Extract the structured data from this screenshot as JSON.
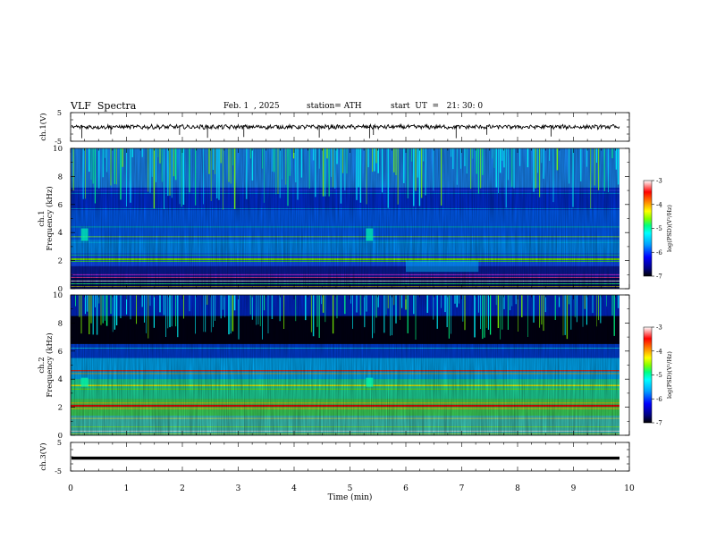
{
  "header": {
    "title": "VLF  Spectra",
    "date": "Feb. 1  , 2025",
    "station": "station= ATH",
    "start": "start  UT  =   21: 30: 0"
  },
  "chart_data": [
    {
      "type": "line",
      "panel": "ch1-waveform",
      "ylabel": "ch.1(V)",
      "y_ticks": [
        "5",
        "-5"
      ],
      "ylim": [
        -5,
        5
      ],
      "xlim": [
        0,
        10
      ],
      "trace_color": "#000000",
      "description_of_signal": "noisy waveform near 0 V with occasional downward spikes"
    },
    {
      "type": "heatmap",
      "panel": "ch1-spectrogram",
      "ylabel": "ch.1\nFrequency  (kHz)",
      "ylabel_line1": "ch.1",
      "ylabel_line2": "Frequency  (kHz)",
      "y_ticks": [
        "0",
        "2",
        "4",
        "6",
        "8",
        "10"
      ],
      "ylim": [
        0,
        10
      ],
      "xlim": [
        0,
        10
      ],
      "colorbar": {
        "label": "log(PSD)(V²/Hz)",
        "ticks": [
          "-3",
          "-4",
          "-5",
          "-6",
          "-7"
        ],
        "range": [
          -7,
          -3
        ]
      }
    },
    {
      "type": "heatmap",
      "panel": "ch2-spectrogram",
      "ylabel_line1": "ch.2",
      "ylabel_line2": "Frequency  (kHz)",
      "y_ticks": [
        "0",
        "2",
        "4",
        "6",
        "8",
        "10"
      ],
      "ylim": [
        0,
        10
      ],
      "xlim": [
        0,
        10
      ],
      "colorbar": {
        "label": "log(PSD)(V²/Hz)",
        "ticks": [
          "-3",
          "-4",
          "-5",
          "-6",
          "-7"
        ],
        "range": [
          -7,
          -3
        ]
      }
    },
    {
      "type": "line",
      "panel": "ch3-waveform",
      "ylabel": "ch.3(V)",
      "y_ticks": [
        "5",
        "-5"
      ],
      "ylim": [
        -5,
        5
      ],
      "xlim": [
        0,
        10
      ],
      "trace_level": -0.5,
      "trace_color": "#000000"
    }
  ],
  "x_axis": {
    "label": "Time  (min)",
    "ticks": [
      "0",
      "1",
      "2",
      "3",
      "4",
      "5",
      "6",
      "7",
      "8",
      "9",
      "10"
    ],
    "range": [
      0,
      10
    ]
  },
  "colors": {
    "colormap": [
      "#000000",
      "#000080",
      "#0000ff",
      "#00a0ff",
      "#00ffff",
      "#00ff80",
      "#80ff00",
      "#ffff00",
      "#ff8000",
      "#ff0000",
      "#ffffff"
    ]
  }
}
